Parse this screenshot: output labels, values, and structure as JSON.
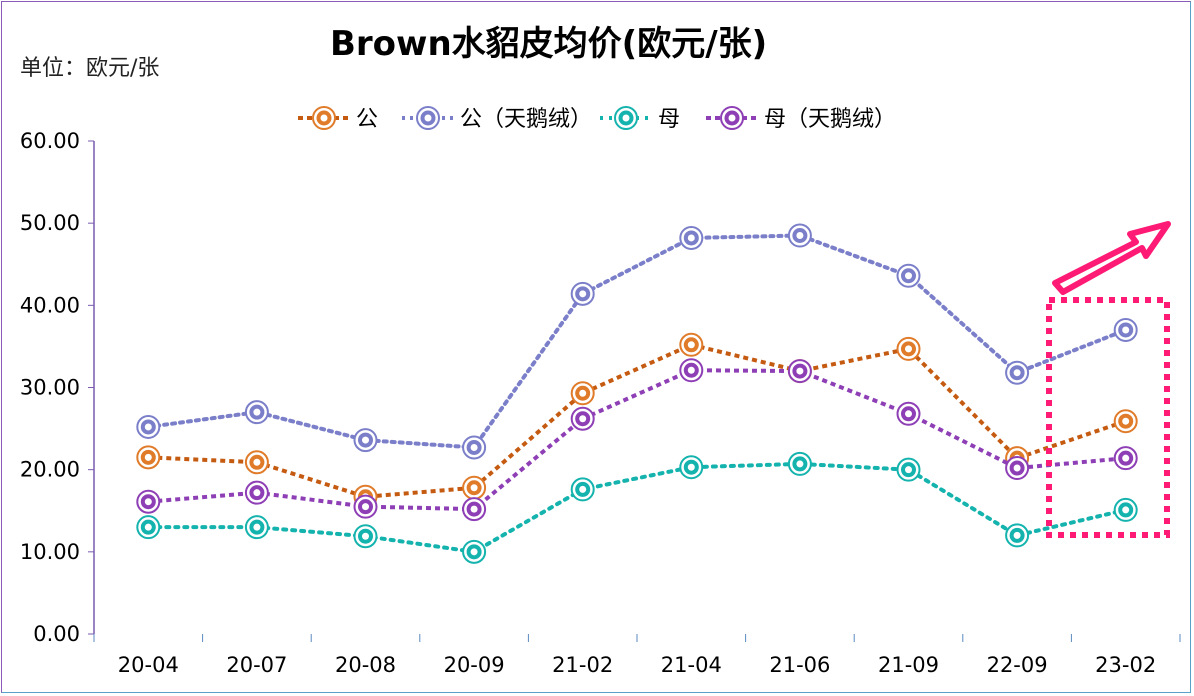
{
  "chart_data": {
    "type": "line",
    "title": "Brown水貂皮均价(欧元/张)",
    "unit_label": "单位：欧元/张",
    "categories": [
      "20-04",
      "20-07",
      "20-08",
      "20-09",
      "21-02",
      "21-04",
      "21-06",
      "21-09",
      "22-09",
      "23-02"
    ],
    "ylim": [
      0,
      60
    ],
    "yticks": [
      "0.00",
      "10.00",
      "20.00",
      "30.00",
      "40.00",
      "50.00",
      "60.00"
    ],
    "legend_position": "top",
    "series": [
      {
        "name": "公",
        "color": "#e07b2a",
        "line": "#c55a11",
        "values": [
          21.5,
          20.9,
          16.7,
          17.8,
          29.3,
          35.2,
          32.0,
          34.7,
          21.4,
          25.9
        ]
      },
      {
        "name": "公（天鹅绒）",
        "color": "#7b7fc9",
        "line": "#7b7fc9",
        "values": [
          25.2,
          27.0,
          23.6,
          22.7,
          41.4,
          48.2,
          48.5,
          43.6,
          31.8,
          37.0
        ]
      },
      {
        "name": "母",
        "color": "#15b3ae",
        "line": "#15b3ae",
        "values": [
          13.0,
          13.0,
          11.9,
          10.0,
          17.6,
          20.3,
          20.7,
          20.0,
          12.0,
          15.1
        ]
      },
      {
        "name": "母（天鹅绒）",
        "color": "#8e3fb5",
        "line": "#8e3fb5",
        "values": [
          16.1,
          17.2,
          15.5,
          15.2,
          26.2,
          32.1,
          32.0,
          26.8,
          20.2,
          21.4
        ]
      }
    ],
    "annotation_color": "#ff1a75"
  }
}
